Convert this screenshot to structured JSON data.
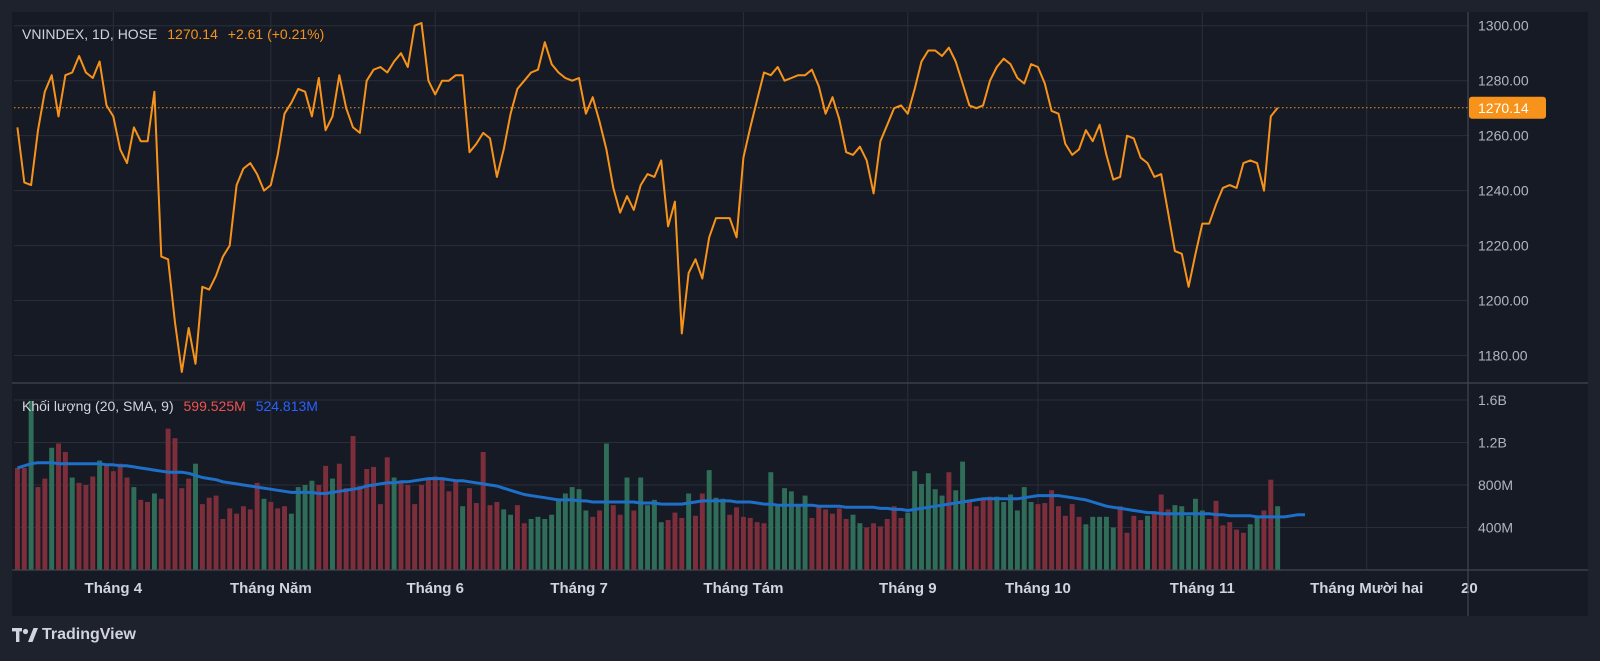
{
  "legend": {
    "symbol": "VNINDEX, 1D, HOSE",
    "last": "1270.14",
    "change": "+2.61 (+0.21%)"
  },
  "volume_legend": {
    "label": "Khối lượng (20, SMA, 9)",
    "value": "599.525M",
    "sma": "524.813M"
  },
  "price_badge": "1270.14",
  "brand": "TradingView",
  "colors": {
    "price_line": "#f7931a",
    "up_volume": "#26a69a",
    "down_volume": "#ef5350",
    "sma_line": "#2962ff",
    "background": "#161a25",
    "grid": "#2a2e39"
  },
  "chart_data": [
    {
      "type": "line",
      "title": "VNINDEX, 1D, HOSE",
      "x_start": "Tháng 4",
      "x_end": "Tháng Mười hai",
      "ylim": [
        1170,
        1305
      ],
      "y_ticks": [
        "1300.00",
        "1280.00",
        "1260.00",
        "1240.00",
        "1220.00",
        "1200.00",
        "1180.00"
      ],
      "x_ticks": [
        "Tháng 4",
        "Tháng Năm",
        "Tháng 6",
        "Tháng 7",
        "Tháng Tám",
        "Tháng 9",
        "Tháng 10",
        "Tháng 11",
        "Tháng Mười hai",
        "20"
      ],
      "x_tick_positions": [
        14,
        37,
        61,
        82,
        106,
        130,
        149,
        173,
        197,
        212
      ],
      "last_value": 1270.14,
      "series": [
        {
          "values": [
            1263,
            1243,
            1242,
            1262,
            1276,
            1282,
            1267,
            1282,
            1283,
            1289,
            1283,
            1281,
            1287,
            1271,
            1267,
            1255,
            1250,
            1263,
            1258,
            1258,
            1276,
            1216,
            1215,
            1192,
            1174,
            1190,
            1177,
            1205,
            1204,
            1209,
            1216,
            1220,
            1242,
            1248,
            1250,
            1246,
            1240,
            1242,
            1253,
            1268,
            1272,
            1277,
            1276,
            1267,
            1281,
            1262,
            1267,
            1282,
            1270,
            1263,
            1261,
            1280,
            1284,
            1285,
            1283,
            1287,
            1290,
            1285,
            1300,
            1301,
            1280,
            1275,
            1280,
            1280,
            1282,
            1282,
            1254,
            1257,
            1261,
            1259,
            1245,
            1255,
            1268,
            1277,
            1280,
            1283,
            1284,
            1294,
            1286,
            1283,
            1281,
            1280,
            1281,
            1268,
            1274,
            1265,
            1255,
            1241,
            1232,
            1238,
            1233,
            1242,
            1246,
            1245,
            1251,
            1227,
            1236,
            1188,
            1210,
            1215,
            1208,
            1223,
            1230,
            1230,
            1230,
            1223,
            1252,
            1263,
            1273,
            1283,
            1282,
            1285,
            1280,
            1281,
            1282,
            1282,
            1284,
            1278,
            1268,
            1274,
            1266,
            1254,
            1253,
            1256,
            1251,
            1239,
            1258,
            1264,
            1270,
            1271,
            1268,
            1277,
            1287,
            1291,
            1291,
            1289,
            1292,
            1287,
            1279,
            1271,
            1270,
            1271,
            1280,
            1285,
            1288,
            1286,
            1281,
            1279,
            1286,
            1285,
            1279,
            1269,
            1268,
            1257,
            1253,
            1255,
            1262,
            1258,
            1264,
            1253,
            1244,
            1245,
            1260,
            1259,
            1252,
            1250,
            1245,
            1246,
            1232,
            1218,
            1217,
            1205,
            1217,
            1228,
            1228,
            1235,
            1241,
            1242,
            1241,
            1250,
            1251,
            1250,
            1240,
            1267,
            1270.14
          ]
        }
      ]
    },
    {
      "type": "bar",
      "title": "Khối lượng (20, SMA, 9)",
      "ylim": [
        0,
        1.75
      ],
      "unit": "B",
      "y_ticks": [
        "1.6B",
        "1.2B",
        "800M",
        "400M"
      ],
      "series": [
        {
          "name": "Khối lượng",
          "values": [
            0.96,
            0.96,
            1.59,
            0.78,
            0.86,
            1.15,
            1.19,
            1.11,
            0.87,
            0.82,
            0.8,
            0.88,
            1.03,
            0.98,
            0.93,
            1.0,
            0.87,
            0.78,
            0.66,
            0.64,
            0.72,
            0.67,
            1.33,
            1.24,
            0.77,
            0.86,
            1.0,
            0.62,
            0.68,
            0.7,
            0.48,
            0.58,
            0.53,
            0.6,
            0.57,
            0.82,
            0.67,
            0.64,
            0.58,
            0.6,
            0.53,
            0.78,
            0.8,
            0.84,
            0.8,
            0.98,
            0.86,
            1.0,
            0.77,
            1.26,
            0.79,
            0.95,
            0.97,
            0.62,
            1.06,
            0.87,
            0.83,
            0.8,
            0.62,
            0.8,
            0.85,
            0.88,
            0.87,
            0.74,
            0.85,
            0.6,
            0.77,
            0.63,
            1.11,
            0.61,
            0.64,
            0.57,
            0.52,
            0.61,
            0.44,
            0.48,
            0.5,
            0.48,
            0.52,
            0.66,
            0.72,
            0.78,
            0.76,
            0.56,
            0.5,
            0.56,
            1.19,
            0.61,
            0.52,
            0.87,
            0.56,
            0.87,
            0.61,
            0.66,
            0.45,
            0.47,
            0.54,
            0.49,
            0.72,
            0.51,
            0.72,
            0.94,
            0.68,
            0.67,
            0.52,
            0.59,
            0.5,
            0.49,
            0.45,
            0.44,
            0.92,
            0.62,
            0.77,
            0.74,
            0.6,
            0.7,
            0.49,
            0.6,
            0.57,
            0.53,
            0.58,
            0.48,
            0.52,
            0.44,
            0.4,
            0.44,
            0.41,
            0.48,
            0.6,
            0.49,
            0.54,
            0.93,
            0.81,
            0.91,
            0.76,
            0.7,
            0.92,
            0.75,
            1.02,
            0.65,
            0.6,
            0.66,
            0.69,
            0.69,
            0.64,
            0.71,
            0.56,
            0.78,
            0.64,
            0.62,
            0.63,
            0.75,
            0.6,
            0.51,
            0.62,
            0.5,
            0.43,
            0.5,
            0.5,
            0.5,
            0.4,
            0.6,
            0.35,
            0.51,
            0.47,
            0.51,
            0.54,
            0.71,
            0.57,
            0.61,
            0.6,
            0.51,
            0.67,
            0.56,
            0.48,
            0.65,
            0.42,
            0.45,
            0.38,
            0.35,
            0.43,
            0.51,
            0.56,
            0.85,
            0.6
          ],
          "direction": "dduddudduddduddddudduddddduddddddddduddduuuuddudddddddduddddddddduddddduudduuuuuuuuuddudduduuuudddudduuudddddduuuuuudddddduudddddduuuuuuduudddduuuuuuddddddduuuuudddduddduuuuudddddduuddudddduuuudd"
        },
        {
          "name": "SMA 9",
          "values": [
            0.96,
            0.98,
            1.0,
            1.01,
            1.01,
            1.01,
            1.0,
            1.0,
            1.0,
            1.0,
            1.0,
            1.0,
            1.0,
            0.99,
            0.99,
            0.98,
            0.98,
            0.97,
            0.96,
            0.95,
            0.94,
            0.93,
            0.92,
            0.92,
            0.92,
            0.91,
            0.89,
            0.87,
            0.86,
            0.85,
            0.83,
            0.82,
            0.81,
            0.8,
            0.79,
            0.78,
            0.77,
            0.76,
            0.75,
            0.74,
            0.73,
            0.73,
            0.73,
            0.73,
            0.72,
            0.72,
            0.73,
            0.74,
            0.75,
            0.76,
            0.77,
            0.79,
            0.8,
            0.81,
            0.82,
            0.82,
            0.83,
            0.83,
            0.84,
            0.85,
            0.86,
            0.86,
            0.86,
            0.85,
            0.84,
            0.84,
            0.83,
            0.82,
            0.81,
            0.8,
            0.79,
            0.77,
            0.75,
            0.73,
            0.71,
            0.7,
            0.69,
            0.68,
            0.67,
            0.66,
            0.66,
            0.66,
            0.65,
            0.65,
            0.64,
            0.64,
            0.64,
            0.64,
            0.64,
            0.64,
            0.64,
            0.63,
            0.63,
            0.63,
            0.62,
            0.62,
            0.62,
            0.62,
            0.63,
            0.64,
            0.65,
            0.65,
            0.65,
            0.65,
            0.65,
            0.64,
            0.64,
            0.64,
            0.63,
            0.62,
            0.62,
            0.61,
            0.61,
            0.61,
            0.61,
            0.61,
            0.61,
            0.6,
            0.6,
            0.6,
            0.6,
            0.59,
            0.59,
            0.59,
            0.59,
            0.59,
            0.58,
            0.58,
            0.57,
            0.57,
            0.56,
            0.57,
            0.58,
            0.59,
            0.6,
            0.61,
            0.62,
            0.63,
            0.64,
            0.65,
            0.66,
            0.67,
            0.67,
            0.67,
            0.67,
            0.67,
            0.67,
            0.68,
            0.69,
            0.7,
            0.7,
            0.7,
            0.7,
            0.69,
            0.68,
            0.67,
            0.66,
            0.64,
            0.62,
            0.6,
            0.59,
            0.58,
            0.57,
            0.56,
            0.55,
            0.54,
            0.54,
            0.53,
            0.53,
            0.53,
            0.53,
            0.53,
            0.53,
            0.53,
            0.53,
            0.52,
            0.52,
            0.51,
            0.51,
            0.51,
            0.51,
            0.5,
            0.5,
            0.5,
            0.5,
            0.5,
            0.51,
            0.52,
            0.52
          ]
        }
      ]
    }
  ]
}
